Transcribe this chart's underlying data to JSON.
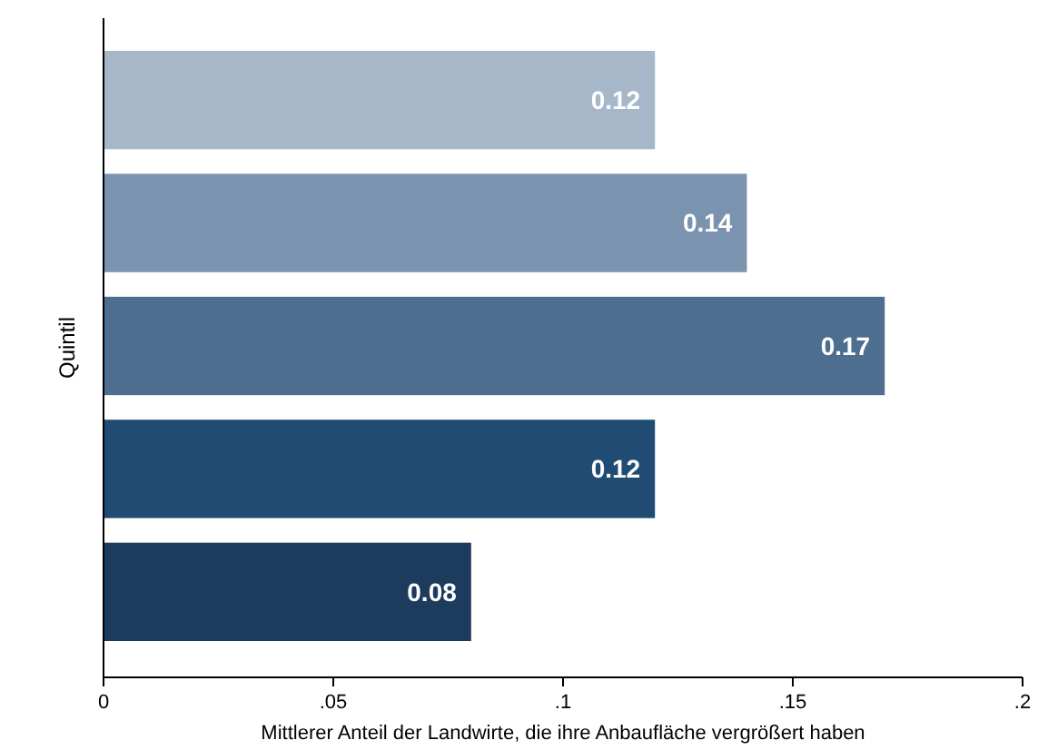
{
  "chart_data": {
    "type": "bar",
    "orientation": "horizontal",
    "ylabel": "Quintil",
    "xlabel": "Mittlerer Anteil der Landwirte, die ihre Anbaufläche vergrößert haben",
    "categories": [
      null,
      null,
      null,
      null,
      null
    ],
    "values": [
      0.12,
      0.14,
      0.17,
      0.12,
      0.08
    ],
    "colors": [
      "#a7b7ca",
      "#7a93ae",
      "#4e6e90",
      "#204c74",
      "#1c3b5d"
    ],
    "xlim": [
      0,
      0.2
    ],
    "xticks": [
      0,
      {
        "value": 0.05,
        "label": ".05"
      },
      {
        "value": 0.1,
        "label": ".1"
      },
      {
        "value": 0.15,
        "label": ".15"
      },
      {
        "value": 0.2,
        "label": ".2"
      }
    ],
    "data_labels": true
  }
}
